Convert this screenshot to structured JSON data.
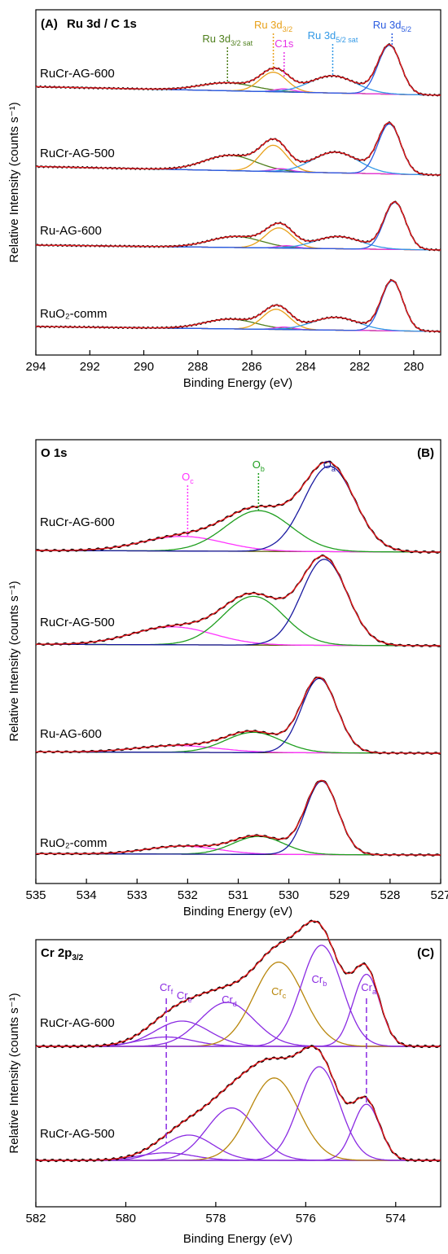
{
  "colors": {
    "experimental": "#000000",
    "fit_envelope": "#e31a1c",
    "background": "#5a5a00",
    "ru_sat_32": "#4e7f1c",
    "ru_3d32": "#e8a11a",
    "c1s": "#e633e6",
    "ru_sat_52": "#3399e6",
    "ru_3d52": "#2b5ce0",
    "o_c": "#ff33ff",
    "o_b": "#1f9e1f",
    "o_a": "#1a1aa0",
    "cr_gold": "#b8860b",
    "cr_purple": "#8a2be2"
  },
  "chart_data": [
    {
      "type": "line",
      "panel_label": "(A)",
      "title": "Ru 3d / C 1s",
      "xlabel": "Binding Energy (eV)",
      "ylabel": "Relative Intensity  (counts s⁻¹)",
      "xlim": [
        294,
        279
      ],
      "x_reversed": true,
      "xticks": [
        294,
        292,
        290,
        288,
        286,
        284,
        282,
        280
      ],
      "peak_labels": [
        {
          "base": "Ru 3d",
          "sub": "3/2 sat",
          "x": 286.9,
          "color_key": "ru_sat_32"
        },
        {
          "base": "Ru 3d",
          "sub": "3/2",
          "x": 285.2,
          "color_key": "ru_3d32"
        },
        {
          "base": "C1s",
          "sub": "",
          "x": 284.8,
          "color_key": "c1s"
        },
        {
          "base": "Ru 3d",
          "sub": "5/2 sat",
          "x": 283.0,
          "color_key": "ru_sat_52"
        },
        {
          "base": "Ru 3d",
          "sub": "5/2",
          "x": 280.8,
          "color_key": "ru_3d52"
        }
      ],
      "series": [
        {
          "name": "RuCr-AG-600",
          "bg": [
            0.14,
            0.0
          ],
          "components": [
            {
              "center": 286.9,
              "height": 0.13,
              "width": 1.0,
              "color_key": "ru_sat_32"
            },
            {
              "center": 285.2,
              "height": 0.32,
              "width": 0.5,
              "color_key": "ru_3d32"
            },
            {
              "center": 284.8,
              "height": 0.05,
              "width": 0.35,
              "color_key": "c1s"
            },
            {
              "center": 283.0,
              "height": 0.28,
              "width": 0.85,
              "color_key": "ru_sat_52"
            },
            {
              "center": 280.9,
              "height": 0.8,
              "width": 0.42,
              "color_key": "ru_3d52"
            }
          ]
        },
        {
          "name": "RuCr-AG-500",
          "bg": [
            0.14,
            0.0
          ],
          "components": [
            {
              "center": 286.8,
              "height": 0.25,
              "width": 0.95,
              "color_key": "ru_sat_32"
            },
            {
              "center": 285.2,
              "height": 0.43,
              "width": 0.5,
              "color_key": "ru_3d32"
            },
            {
              "center": 284.9,
              "height": 0.05,
              "width": 0.35,
              "color_key": "c1s"
            },
            {
              "center": 282.9,
              "height": 0.34,
              "width": 0.85,
              "color_key": "ru_sat_52"
            },
            {
              "center": 280.9,
              "height": 0.82,
              "width": 0.42,
              "color_key": "ru_3d52"
            }
          ]
        },
        {
          "name": "Ru-AG-600",
          "bg": [
            0.08,
            0.0
          ],
          "components": [
            {
              "center": 286.6,
              "height": 0.18,
              "width": 0.95,
              "color_key": "ru_sat_32"
            },
            {
              "center": 285.0,
              "height": 0.33,
              "width": 0.5,
              "color_key": "ru_3d32"
            },
            {
              "center": 284.7,
              "height": 0.04,
              "width": 0.35,
              "color_key": "c1s"
            },
            {
              "center": 282.8,
              "height": 0.2,
              "width": 0.85,
              "color_key": "ru_sat_52"
            },
            {
              "center": 280.7,
              "height": 0.77,
              "width": 0.4,
              "color_key": "ru_3d52"
            }
          ]
        },
        {
          "name": "RuO₂-comm",
          "bg": [
            0.08,
            0.0
          ],
          "components": [
            {
              "center": 286.8,
              "height": 0.16,
              "width": 0.95,
              "color_key": "ru_sat_32"
            },
            {
              "center": 285.1,
              "height": 0.33,
              "width": 0.5,
              "color_key": "ru_3d32"
            },
            {
              "center": 284.8,
              "height": 0.04,
              "width": 0.35,
              "color_key": "c1s"
            },
            {
              "center": 282.9,
              "height": 0.21,
              "width": 0.85,
              "color_key": "ru_sat_52"
            },
            {
              "center": 280.8,
              "height": 0.82,
              "width": 0.4,
              "color_key": "ru_3d52"
            }
          ]
        }
      ]
    },
    {
      "type": "line",
      "panel_label": "(B)",
      "title": "O 1s",
      "xlabel": "Binding Energy (eV)",
      "ylabel": "Relative Intensity  (counts s⁻¹)",
      "xlim": [
        535,
        527
      ],
      "x_reversed": true,
      "xticks": [
        535,
        534,
        533,
        532,
        531,
        530,
        529,
        528,
        527
      ],
      "peak_labels": [
        {
          "base": "O",
          "sub": "c",
          "x": 532.0,
          "color_key": "o_c"
        },
        {
          "base": "O",
          "sub": "b",
          "x": 530.6,
          "color_key": "o_b"
        },
        {
          "base": "O",
          "sub": "a",
          "x": 529.2,
          "color_key": "o_a"
        }
      ],
      "series": [
        {
          "name": "RuCr-AG-600",
          "bg": [
            0.02,
            0.0
          ],
          "components": [
            {
              "center": 532.1,
              "height": 0.18,
              "width": 0.8,
              "color_key": "o_c"
            },
            {
              "center": 530.6,
              "height": 0.5,
              "width": 0.65,
              "color_key": "o_b"
            },
            {
              "center": 529.2,
              "height": 1.05,
              "width": 0.5,
              "color_key": "o_a"
            }
          ]
        },
        {
          "name": "RuCr-AG-500",
          "bg": [
            0.02,
            0.0
          ],
          "components": [
            {
              "center": 532.3,
              "height": 0.25,
              "width": 0.8,
              "color_key": "o_c"
            },
            {
              "center": 530.7,
              "height": 0.68,
              "width": 0.6,
              "color_key": "o_b"
            },
            {
              "center": 529.3,
              "height": 1.2,
              "width": 0.45,
              "color_key": "o_a"
            }
          ]
        },
        {
          "name": "Ru-AG-600",
          "bg": [
            0.02,
            0.0
          ],
          "components": [
            {
              "center": 532.2,
              "height": 0.1,
              "width": 0.8,
              "color_key": "o_c"
            },
            {
              "center": 530.7,
              "height": 0.3,
              "width": 0.55,
              "color_key": "o_b"
            },
            {
              "center": 529.4,
              "height": 1.1,
              "width": 0.35,
              "color_key": "o_a"
            }
          ]
        },
        {
          "name": "RuO₂-comm",
          "bg": [
            0.02,
            0.0
          ],
          "components": [
            {
              "center": 532.1,
              "height": 0.12,
              "width": 0.7,
              "color_key": "o_c"
            },
            {
              "center": 530.6,
              "height": 0.27,
              "width": 0.5,
              "color_key": "o_b"
            },
            {
              "center": 529.35,
              "height": 1.1,
              "width": 0.32,
              "color_key": "o_a"
            }
          ]
        }
      ]
    },
    {
      "type": "line",
      "panel_label": "(C)",
      "title": "Cr 2p",
      "title_sub": "3/2",
      "xlabel": "Binding Energy (eV)",
      "ylabel": "Relative Intensity  (counts s⁻¹)",
      "xlim": [
        582,
        573
      ],
      "x_reversed": true,
      "xticks": [
        582,
        580,
        578,
        576,
        574
      ],
      "peak_labels": [
        {
          "base": "Cr",
          "sub": "f",
          "x": 579.1,
          "color_key": "cr_purple"
        },
        {
          "base": "Cr",
          "sub": "e",
          "x": 578.7,
          "color_key": "cr_purple"
        },
        {
          "base": "Cr",
          "sub": "d",
          "x": 577.7,
          "color_key": "cr_purple"
        },
        {
          "base": "Cr",
          "sub": "c",
          "x": 576.6,
          "color_key": "cr_gold"
        },
        {
          "base": "Cr",
          "sub": "b",
          "x": 575.7,
          "color_key": "cr_purple"
        },
        {
          "base": "Cr",
          "sub": "a",
          "x": 574.6,
          "color_key": "cr_purple"
        }
      ],
      "series": [
        {
          "name": "RuCr-AG-600",
          "bg": [
            0.0,
            0.0
          ],
          "components": [
            {
              "center": 579.1,
              "height": 0.1,
              "width": 0.6,
              "color_key": "cr_purple"
            },
            {
              "center": 578.75,
              "height": 0.27,
              "width": 0.6,
              "color_key": "cr_purple"
            },
            {
              "center": 577.75,
              "height": 0.47,
              "width": 0.6,
              "color_key": "cr_purple"
            },
            {
              "center": 576.6,
              "height": 0.9,
              "width": 0.55,
              "color_key": "cr_gold"
            },
            {
              "center": 575.65,
              "height": 1.08,
              "width": 0.45,
              "color_key": "cr_purple"
            },
            {
              "center": 574.65,
              "height": 0.77,
              "width": 0.3,
              "color_key": "cr_purple"
            }
          ]
        },
        {
          "name": "RuCr-AG-500",
          "bg": [
            0.0,
            0.0
          ],
          "components": [
            {
              "center": 579.1,
              "height": 0.08,
              "width": 0.6,
              "color_key": "cr_purple"
            },
            {
              "center": 578.6,
              "height": 0.27,
              "width": 0.55,
              "color_key": "cr_purple"
            },
            {
              "center": 577.65,
              "height": 0.56,
              "width": 0.55,
              "color_key": "cr_purple"
            },
            {
              "center": 576.7,
              "height": 0.88,
              "width": 0.55,
              "color_key": "cr_gold"
            },
            {
              "center": 575.7,
              "height": 1.0,
              "width": 0.45,
              "color_key": "cr_purple"
            },
            {
              "center": 574.65,
              "height": 0.6,
              "width": 0.3,
              "color_key": "cr_purple"
            }
          ]
        }
      ]
    }
  ]
}
